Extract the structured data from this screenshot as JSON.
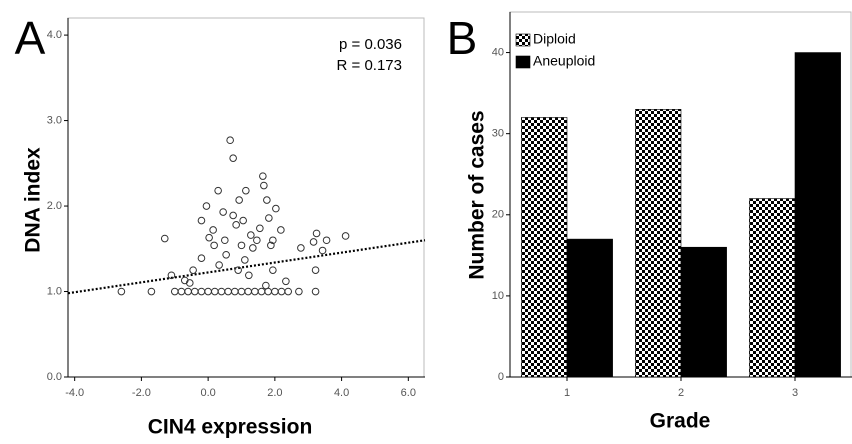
{
  "chart_data": [
    {
      "type": "scatter",
      "panel_label": "A",
      "x_label": "CIN4 expression",
      "y_label": "DNA index",
      "annotations": [
        "p = 0.036",
        "R = 0.173"
      ],
      "xlim": [
        -4.2,
        6.5
      ],
      "ylim": [
        0,
        4.2
      ],
      "xticks": [
        {
          "value": -4,
          "label": "-4.0"
        },
        {
          "value": -2,
          "label": "-2.0"
        },
        {
          "value": 0,
          "label": "0.0"
        },
        {
          "value": 2,
          "label": "2.0"
        },
        {
          "value": 4,
          "label": "4.0"
        },
        {
          "value": 6,
          "label": "6.0"
        }
      ],
      "yticks": [
        {
          "value": 0,
          "label": "0.0"
        },
        {
          "value": 1,
          "label": "1.0"
        },
        {
          "value": 2,
          "label": "2.0"
        },
        {
          "value": 3,
          "label": "3.0"
        },
        {
          "value": 4,
          "label": "4.0"
        }
      ],
      "color": "#333333",
      "x": [
        -2.6,
        -1.7,
        -1.3,
        -1.1,
        -0.7,
        -0.55,
        -0.45,
        -0.2,
        -0.05,
        -0.2,
        0.03,
        0.18,
        0.15,
        0.3,
        0.33,
        0.45,
        0.5,
        0.54,
        0.66,
        0.75,
        0.75,
        0.84,
        0.9,
        0.93,
        1.0,
        1.05,
        1.13,
        1.1,
        1.22,
        1.28,
        1.34,
        1.46,
        1.55,
        1.64,
        1.67,
        1.76,
        1.82,
        1.88,
        1.94,
        2.03,
        1.94,
        2.18,
        2.33,
        2.78,
        3.16,
        3.22,
        3.25,
        3.43,
        3.55,
        4.12,
        3.22,
        2.72,
        1.73,
        -1.0,
        -0.8,
        -0.6,
        -0.4,
        -0.2,
        0.0,
        0.2,
        0.4,
        0.6,
        0.8,
        1.0,
        1.2,
        1.4,
        1.6,
        1.8,
        2.0,
        2.2,
        2.4
      ],
      "values": [
        1.0,
        1.0,
        1.62,
        1.19,
        1.13,
        1.1,
        1.25,
        1.83,
        2.0,
        1.39,
        1.63,
        1.54,
        1.72,
        2.18,
        1.31,
        1.93,
        1.6,
        1.43,
        2.77,
        2.56,
        1.89,
        1.78,
        1.25,
        2.07,
        1.54,
        1.83,
        2.18,
        1.37,
        1.19,
        1.66,
        1.51,
        1.6,
        1.74,
        2.35,
        2.24,
        2.07,
        1.86,
        1.54,
        1.6,
        1.97,
        1.25,
        1.72,
        1.12,
        1.51,
        1.58,
        1.25,
        1.68,
        1.48,
        1.6,
        1.65,
        1.0,
        1.0,
        1.07,
        1.0,
        1.0,
        1.0,
        1.0,
        1.0,
        1.0,
        1.0,
        1.0,
        1.0,
        1.0,
        1.0,
        1.0,
        1.0,
        1.0,
        1.0,
        1.0,
        1.0,
        1.0
      ],
      "trendline": {
        "x": [
          -4.2,
          6.5
        ],
        "y": [
          0.98,
          1.6
        ]
      }
    },
    {
      "type": "bar",
      "panel_label": "B",
      "x_label": "Grade",
      "y_label": "Number of cases",
      "categories": [
        "1",
        "2",
        "3"
      ],
      "series": [
        {
          "name": "Diploid",
          "color": "#000000",
          "pattern": "checkerboard",
          "values": [
            32,
            33,
            22
          ]
        },
        {
          "name": "Aneuploid",
          "color": "#000000",
          "values": [
            17,
            16,
            40
          ]
        }
      ],
      "ylim": [
        0,
        45
      ],
      "yticks": [
        0,
        10,
        20,
        30,
        40
      ],
      "legend": "upper-left"
    }
  ]
}
